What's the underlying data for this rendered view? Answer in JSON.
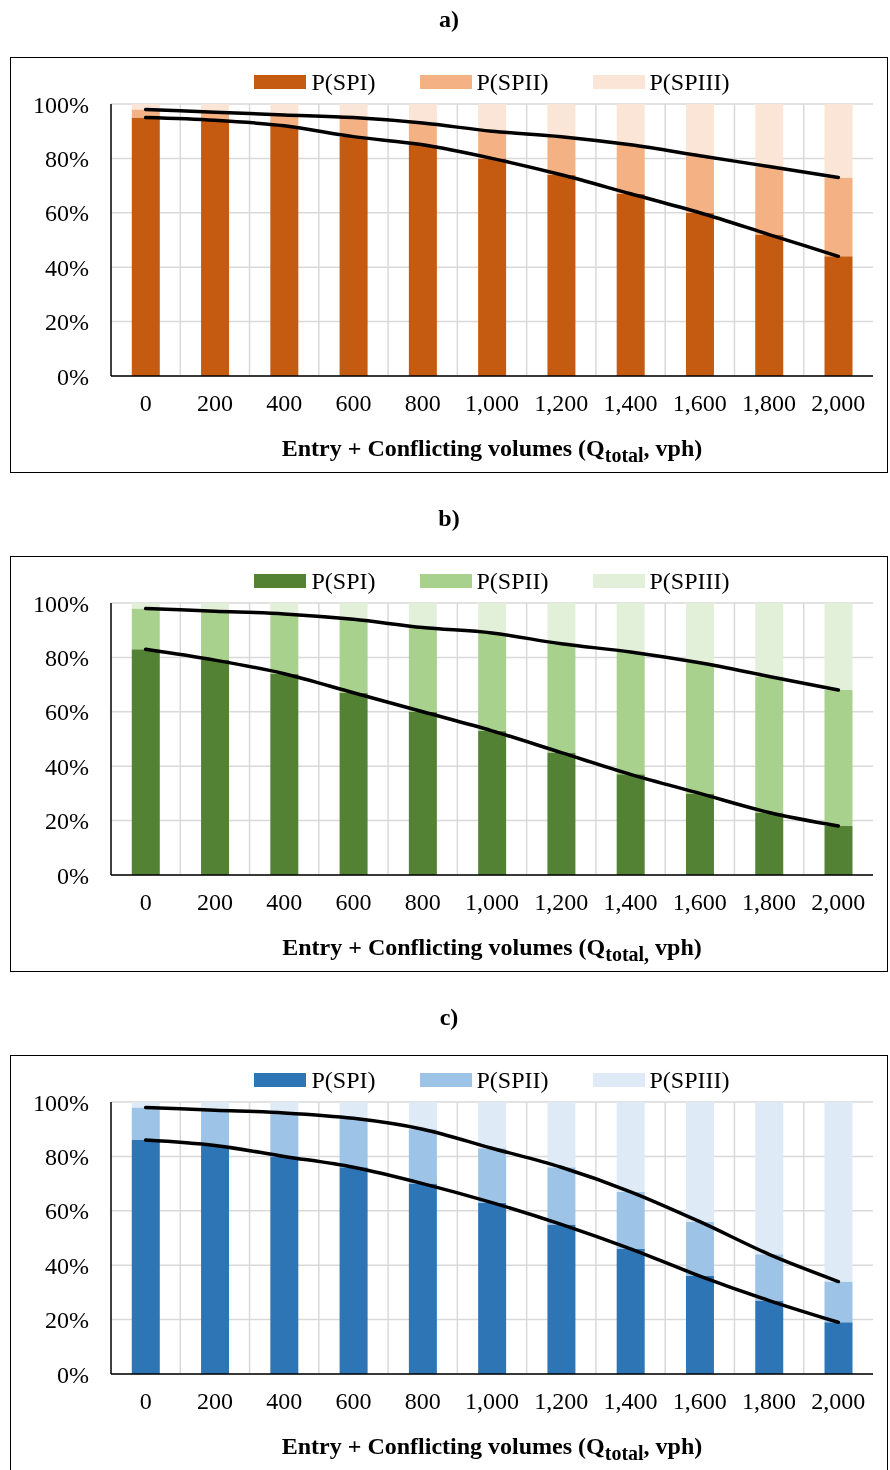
{
  "chart_data": [
    {
      "type": "bar",
      "stacked": true,
      "title": "a)",
      "xlabel": "Entry + Conflicting volumes (Q$_{total}$, vph)",
      "categories": [
        "0",
        "200",
        "400",
        "600",
        "800",
        "1,000",
        "1,200",
        "1,400",
        "1,600",
        "1,800",
        "2,000"
      ],
      "series": [
        {
          "name": "P(SPI)",
          "color": "#c55a11",
          "values": [
            95,
            94,
            92,
            88,
            85,
            80,
            74,
            67,
            60,
            52,
            44
          ]
        },
        {
          "name": "P(SPII)",
          "color": "#f4b183",
          "values": [
            3,
            3,
            4,
            7,
            8,
            10,
            14,
            18,
            21,
            25,
            29
          ]
        },
        {
          "name": "P(SPIII)",
          "color": "#fbe5d6",
          "values": [
            2,
            3,
            4,
            5,
            7,
            10,
            12,
            15,
            19,
            23,
            27
          ]
        },
        {
          "type": "line",
          "color": "#000000",
          "marker": "none",
          "values": [
            95,
            94,
            92,
            88,
            85,
            80,
            74,
            67,
            60,
            52,
            44
          ]
        },
        {
          "type": "line",
          "color": "#000000",
          "marker": "none",
          "values": [
            98,
            97,
            96,
            95,
            93,
            90,
            88,
            85,
            81,
            77,
            73
          ]
        }
      ],
      "ylim": [
        0,
        100
      ],
      "yticks": [
        {
          "value": 0,
          "label": "0%"
        },
        {
          "value": 20,
          "label": "20%"
        },
        {
          "value": 40,
          "label": "40%"
        },
        {
          "value": 60,
          "label": "60%"
        },
        {
          "value": 80,
          "label": "80%"
        },
        {
          "value": 100,
          "label": "100%"
        }
      ],
      "grid": true,
      "legend": "top"
    },
    {
      "type": "bar",
      "stacked": true,
      "title": "b)",
      "xlabel": "Entry + Conflicting volumes (Q$_{total,}$ vph)",
      "categories": [
        "0",
        "200",
        "400",
        "600",
        "800",
        "1,000",
        "1,200",
        "1,400",
        "1,600",
        "1,800",
        "2,000"
      ],
      "series": [
        {
          "name": "P(SPI)",
          "color": "#548235",
          "values": [
            83,
            79,
            74,
            67,
            60,
            53,
            45,
            37,
            30,
            23,
            18
          ]
        },
        {
          "name": "P(SPII)",
          "color": "#a9d18e",
          "values": [
            15,
            18,
            22,
            27,
            31,
            36,
            40,
            45,
            48,
            50,
            50
          ]
        },
        {
          "name": "P(SPIII)",
          "color": "#e2f0d9",
          "values": [
            2,
            3,
            4,
            6,
            9,
            11,
            15,
            18,
            22,
            27,
            32
          ]
        },
        {
          "type": "line",
          "color": "#000000",
          "marker": "none",
          "values": [
            83,
            79,
            74,
            67,
            60,
            53,
            45,
            37,
            30,
            23,
            18
          ]
        },
        {
          "type": "line",
          "color": "#000000",
          "marker": "none",
          "values": [
            98,
            97,
            96,
            94,
            91,
            89,
            85,
            82,
            78,
            73,
            68
          ]
        }
      ],
      "ylim": [
        0,
        100
      ],
      "yticks": [
        {
          "value": 0,
          "label": "0%"
        },
        {
          "value": 20,
          "label": "20%"
        },
        {
          "value": 40,
          "label": "40%"
        },
        {
          "value": 60,
          "label": "60%"
        },
        {
          "value": 80,
          "label": "80%"
        },
        {
          "value": 100,
          "label": "100%"
        }
      ],
      "grid": true,
      "legend": "top"
    },
    {
      "type": "bar",
      "stacked": true,
      "title": "c)",
      "xlabel": "Entry + Conflicting volumes (Q$_{total}$, vph)",
      "categories": [
        "0",
        "200",
        "400",
        "600",
        "800",
        "1,000",
        "1,200",
        "1,400",
        "1,600",
        "1,800",
        "2,000"
      ],
      "series": [
        {
          "name": "P(SPI)",
          "color": "#2e75b6",
          "values": [
            86,
            84,
            80,
            76,
            70,
            63,
            55,
            46,
            36,
            27,
            19
          ]
        },
        {
          "name": "P(SPII)",
          "color": "#9dc3e6",
          "values": [
            12,
            13,
            16,
            18,
            20,
            20,
            21,
            21,
            20,
            17,
            15
          ]
        },
        {
          "name": "P(SPIII)",
          "color": "#deebf7",
          "values": [
            2,
            3,
            4,
            6,
            10,
            17,
            24,
            33,
            44,
            56,
            66
          ]
        },
        {
          "type": "line",
          "color": "#000000",
          "marker": "none",
          "values": [
            86,
            84,
            80,
            76,
            70,
            63,
            55,
            46,
            36,
            27,
            19
          ]
        },
        {
          "type": "line",
          "color": "#000000",
          "marker": "none",
          "values": [
            98,
            97,
            96,
            94,
            90,
            83,
            76,
            67,
            56,
            44,
            34
          ]
        }
      ],
      "ylim": [
        0,
        100
      ],
      "yticks": [
        {
          "value": 0,
          "label": "0%"
        },
        {
          "value": 20,
          "label": "20%"
        },
        {
          "value": 40,
          "label": "40%"
        },
        {
          "value": 60,
          "label": "60%"
        },
        {
          "value": 80,
          "label": "80%"
        },
        {
          "value": 100,
          "label": "100%"
        }
      ],
      "grid": true,
      "legend": "top"
    }
  ]
}
